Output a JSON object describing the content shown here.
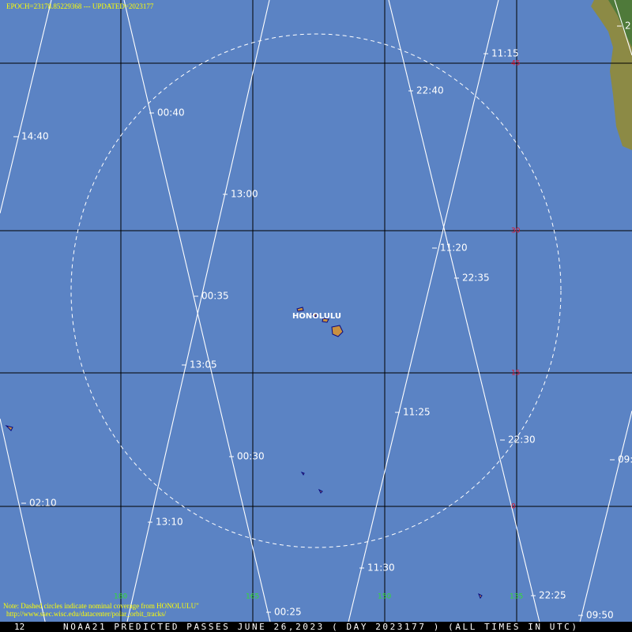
{
  "header": {
    "epoch": "EPOCH=23178.85229368 --- UPDATED=2023177"
  },
  "latitude_labels": [
    "45",
    "30",
    "15",
    "0"
  ],
  "longitude_labels": [
    "180",
    "165",
    "150",
    "135"
  ],
  "track_labels": [
    "11:15",
    "22:40",
    "00:40",
    "14:40",
    "13:00",
    "11:20",
    "22:35",
    "00:35",
    "13:05",
    "11:25",
    "22:30",
    "00:30",
    "09:",
    "02:10",
    "13:10",
    "11:30",
    "22:25",
    "00:25",
    "09:50",
    "2"
  ],
  "place": "HONOLULU",
  "note": {
    "line1": "Note: Dashed circles indicate nominal coverage from HONOLULU\"",
    "line2": "http://www.ssec.wisc.edu/datacenter/polar_orbit_tracks/"
  },
  "footer": {
    "page": "12",
    "title": "NOAA21 PREDICTED PASSES JUNE 26,2023 ( DAY 2023177 ) (ALL TIMES IN UTC)"
  }
}
